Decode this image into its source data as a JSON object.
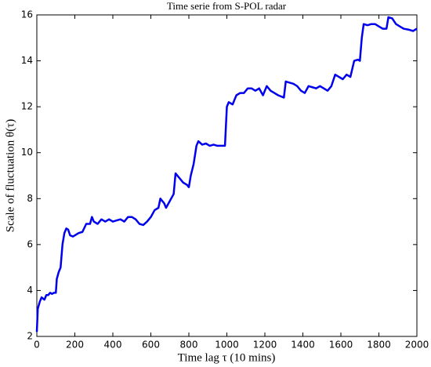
{
  "chart_data": {
    "type": "line",
    "title": "Time serie from S-POL radar",
    "x_label": "Time lag τ (10 mins)",
    "y_label": "Scale of fluctuation θ(τ)",
    "color": "#0000ee",
    "x": [
      0,
      5,
      15,
      25,
      40,
      50,
      60,
      70,
      80,
      90,
      100,
      105,
      115,
      125,
      135,
      145,
      155,
      165,
      175,
      190,
      200,
      220,
      240,
      260,
      280,
      290,
      300,
      320,
      340,
      360,
      380,
      400,
      420,
      440,
      460,
      480,
      500,
      520,
      540,
      560,
      580,
      600,
      620,
      640,
      650,
      670,
      680,
      700,
      720,
      730,
      750,
      770,
      790,
      800,
      810,
      825,
      840,
      850,
      870,
      890,
      910,
      930,
      950,
      970,
      990,
      1000,
      1010,
      1030,
      1050,
      1070,
      1090,
      1110,
      1130,
      1150,
      1170,
      1190,
      1210,
      1230,
      1250,
      1270,
      1300,
      1310,
      1330,
      1350,
      1370,
      1390,
      1410,
      1430,
      1450,
      1470,
      1490,
      1510,
      1530,
      1550,
      1570,
      1590,
      1610,
      1630,
      1650,
      1670,
      1690,
      1700,
      1710,
      1720,
      1740,
      1760,
      1780,
      1800,
      1820,
      1840,
      1850,
      1870,
      1890,
      1910,
      1930,
      1960,
      1980,
      2000
    ],
    "values": [
      2.2,
      3.2,
      3.5,
      3.7,
      3.6,
      3.8,
      3.8,
      3.9,
      3.85,
      3.9,
      3.9,
      4.5,
      4.8,
      5.0,
      6.0,
      6.5,
      6.7,
      6.65,
      6.4,
      6.35,
      6.4,
      6.5,
      6.55,
      6.9,
      6.9,
      7.2,
      7.0,
      6.9,
      7.1,
      7.0,
      7.1,
      7.0,
      7.05,
      7.1,
      7.0,
      7.2,
      7.2,
      7.1,
      6.9,
      6.85,
      7.0,
      7.2,
      7.5,
      7.6,
      8.0,
      7.8,
      7.6,
      7.9,
      8.2,
      9.1,
      8.9,
      8.7,
      8.6,
      8.5,
      9.0,
      9.5,
      10.3,
      10.5,
      10.35,
      10.4,
      10.3,
      10.35,
      10.3,
      10.3,
      10.3,
      12.0,
      12.2,
      12.1,
      12.5,
      12.6,
      12.6,
      12.8,
      12.8,
      12.7,
      12.8,
      12.5,
      12.9,
      12.7,
      12.6,
      12.5,
      12.4,
      13.1,
      13.05,
      13.0,
      12.9,
      12.7,
      12.6,
      12.9,
      12.85,
      12.8,
      12.9,
      12.8,
      12.7,
      12.9,
      13.4,
      13.3,
      13.2,
      13.4,
      13.3,
      14.0,
      14.05,
      14.0,
      15.0,
      15.6,
      15.55,
      15.6,
      15.6,
      15.5,
      15.4,
      15.4,
      15.9,
      15.85,
      15.6,
      15.5,
      15.4,
      15.35,
      15.3,
      15.4
    ],
    "xlim": [
      0,
      2000
    ],
    "xticks": [
      0,
      200,
      400,
      600,
      800,
      1000,
      1200,
      1400,
      1600,
      1800,
      2000
    ],
    "ylim": [
      2,
      16
    ],
    "yticks": [
      2,
      4,
      6,
      8,
      10,
      12,
      14,
      16
    ]
  }
}
